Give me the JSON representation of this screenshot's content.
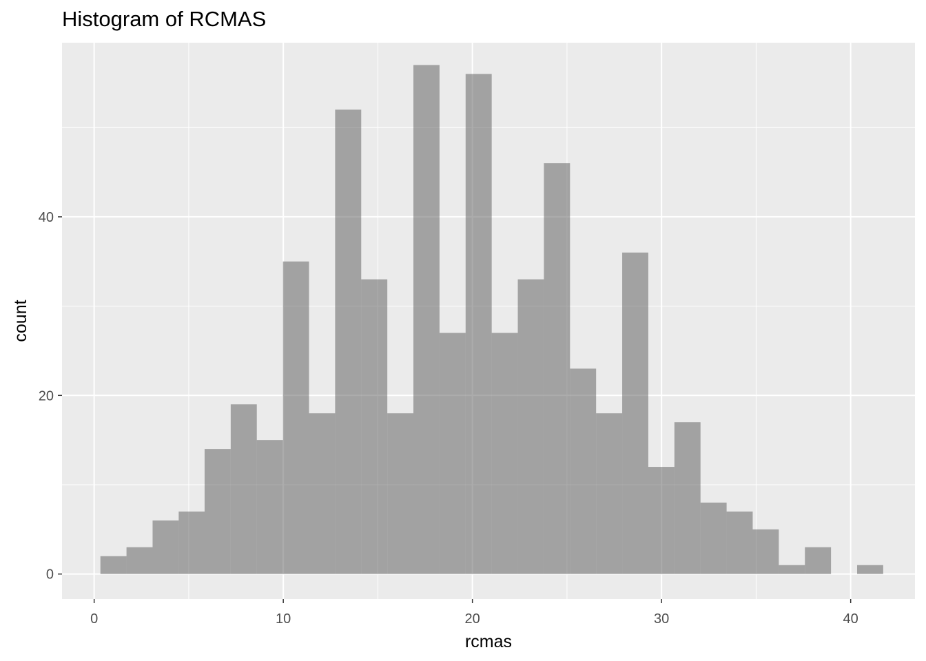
{
  "chart_data": {
    "type": "bar",
    "title": "Histogram of RCMAS",
    "xlabel": "rcmas",
    "ylabel": "count",
    "xlim": [
      -1.7,
      43.4
    ],
    "ylim": [
      -2.8,
      59.5
    ],
    "x_ticks": [
      0,
      10,
      20,
      30,
      40
    ],
    "y_ticks": [
      0,
      20,
      40
    ],
    "grid": true,
    "bar_color": "#a3a3a3",
    "panel_color": "#ebebeb",
    "bin_width": 1.379,
    "bins": [
      {
        "xmin": 0.33,
        "xmax": 1.71,
        "count": 2
      },
      {
        "xmin": 1.71,
        "xmax": 3.09,
        "count": 3
      },
      {
        "xmin": 3.09,
        "xmax": 4.47,
        "count": 6
      },
      {
        "xmin": 4.47,
        "xmax": 5.84,
        "count": 7
      },
      {
        "xmin": 5.84,
        "xmax": 7.22,
        "count": 14
      },
      {
        "xmin": 7.22,
        "xmax": 8.6,
        "count": 19
      },
      {
        "xmin": 8.6,
        "xmax": 9.98,
        "count": 15
      },
      {
        "xmin": 9.98,
        "xmax": 11.36,
        "count": 35
      },
      {
        "xmin": 11.36,
        "xmax": 12.74,
        "count": 18
      },
      {
        "xmin": 12.74,
        "xmax": 14.12,
        "count": 52
      },
      {
        "xmin": 14.12,
        "xmax": 15.5,
        "count": 33
      },
      {
        "xmin": 15.5,
        "xmax": 16.88,
        "count": 18
      },
      {
        "xmin": 16.88,
        "xmax": 18.26,
        "count": 57
      },
      {
        "xmin": 18.26,
        "xmax": 19.64,
        "count": 27
      },
      {
        "xmin": 19.64,
        "xmax": 21.02,
        "count": 56
      },
      {
        "xmin": 21.02,
        "xmax": 22.4,
        "count": 27
      },
      {
        "xmin": 22.4,
        "xmax": 23.78,
        "count": 33
      },
      {
        "xmin": 23.78,
        "xmax": 25.16,
        "count": 46
      },
      {
        "xmin": 25.16,
        "xmax": 26.54,
        "count": 23
      },
      {
        "xmin": 26.54,
        "xmax": 27.92,
        "count": 18
      },
      {
        "xmin": 27.92,
        "xmax": 29.3,
        "count": 36
      },
      {
        "xmin": 29.3,
        "xmax": 30.68,
        "count": 12
      },
      {
        "xmin": 30.68,
        "xmax": 32.06,
        "count": 17
      },
      {
        "xmin": 32.06,
        "xmax": 33.44,
        "count": 8
      },
      {
        "xmin": 33.44,
        "xmax": 34.82,
        "count": 7
      },
      {
        "xmin": 34.82,
        "xmax": 36.2,
        "count": 5
      },
      {
        "xmin": 36.2,
        "xmax": 37.58,
        "count": 1
      },
      {
        "xmin": 37.58,
        "xmax": 38.96,
        "count": 3
      },
      {
        "xmin": 38.96,
        "xmax": 40.34,
        "count": 0
      },
      {
        "xmin": 40.34,
        "xmax": 41.72,
        "count": 1
      }
    ]
  }
}
